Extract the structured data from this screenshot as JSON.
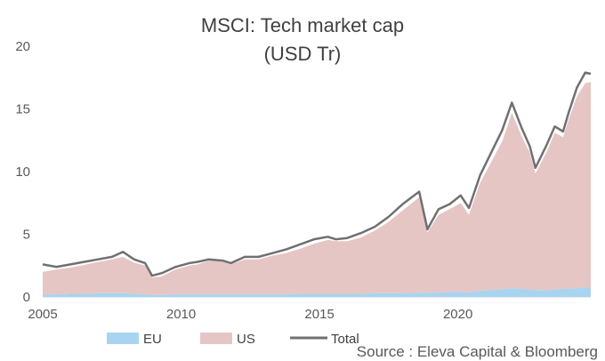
{
  "chart_data": {
    "type": "area",
    "title": "MSCI: Tech market cap",
    "subtitle": "(USD Tr)",
    "source": "Source : Eleva Capital & Bloomberg",
    "xlim": [
      2005,
      2024.8
    ],
    "ylim": [
      0,
      20
    ],
    "xticks": [
      "2005",
      "2010",
      "2015",
      "2020"
    ],
    "yticks": [
      "0",
      "5",
      "10",
      "15",
      "20"
    ],
    "x": [
      2005.0,
      2005.5,
      2006.0,
      2006.5,
      2007.0,
      2007.5,
      2007.9,
      2008.3,
      2008.7,
      2008.95,
      2009.3,
      2009.8,
      2010.3,
      2010.6,
      2011.0,
      2011.5,
      2011.8,
      2012.3,
      2012.8,
      2013.3,
      2013.8,
      2014.3,
      2014.8,
      2015.3,
      2015.6,
      2016.0,
      2016.5,
      2017.0,
      2017.5,
      2018.0,
      2018.6,
      2018.9,
      2019.3,
      2019.7,
      2020.1,
      2020.4,
      2020.8,
      2021.2,
      2021.6,
      2021.95,
      2022.3,
      2022.6,
      2022.8,
      2023.2,
      2023.5,
      2023.8,
      2024.0,
      2024.3,
      2024.6,
      2024.8
    ],
    "legend": [
      "EU",
      "US",
      "Total"
    ],
    "colors": {
      "eu": "#a8d4f0",
      "us": "#e5c6c4",
      "total": "#707070"
    },
    "series": [
      {
        "name": "EU",
        "values": [
          0.2,
          0.2,
          0.25,
          0.25,
          0.3,
          0.3,
          0.3,
          0.25,
          0.2,
          0.15,
          0.15,
          0.2,
          0.2,
          0.2,
          0.2,
          0.2,
          0.2,
          0.2,
          0.2,
          0.2,
          0.2,
          0.25,
          0.25,
          0.25,
          0.25,
          0.25,
          0.25,
          0.3,
          0.3,
          0.3,
          0.35,
          0.35,
          0.35,
          0.4,
          0.4,
          0.35,
          0.5,
          0.55,
          0.6,
          0.7,
          0.65,
          0.6,
          0.55,
          0.55,
          0.6,
          0.65,
          0.65,
          0.7,
          0.75,
          0.75
        ]
      },
      {
        "name": "US",
        "values": [
          1.8,
          2.0,
          2.1,
          2.3,
          2.5,
          2.7,
          2.9,
          2.5,
          2.3,
          1.4,
          1.5,
          2.0,
          2.3,
          2.4,
          2.7,
          2.6,
          2.4,
          2.8,
          2.8,
          3.1,
          3.3,
          3.6,
          4.0,
          4.3,
          4.2,
          4.2,
          4.5,
          5.0,
          5.7,
          6.6,
          7.6,
          4.8,
          6.2,
          6.6,
          7.1,
          6.2,
          8.6,
          10.2,
          11.8,
          14.0,
          12.2,
          10.9,
          9.3,
          11.0,
          12.5,
          12.1,
          13.5,
          15.3,
          16.3,
          16.4
        ]
      },
      {
        "name": "Total",
        "values": [
          2.6,
          2.4,
          2.6,
          2.8,
          3.0,
          3.2,
          3.6,
          3.0,
          2.7,
          1.7,
          1.9,
          2.4,
          2.7,
          2.8,
          3.0,
          2.9,
          2.7,
          3.2,
          3.2,
          3.5,
          3.8,
          4.2,
          4.6,
          4.8,
          4.6,
          4.7,
          5.1,
          5.6,
          6.4,
          7.4,
          8.4,
          5.4,
          7.0,
          7.4,
          8.1,
          7.1,
          9.7,
          11.5,
          13.3,
          15.5,
          13.5,
          12.0,
          10.3,
          12.1,
          13.6,
          13.2,
          14.7,
          16.7,
          17.9,
          17.8
        ]
      }
    ]
  }
}
